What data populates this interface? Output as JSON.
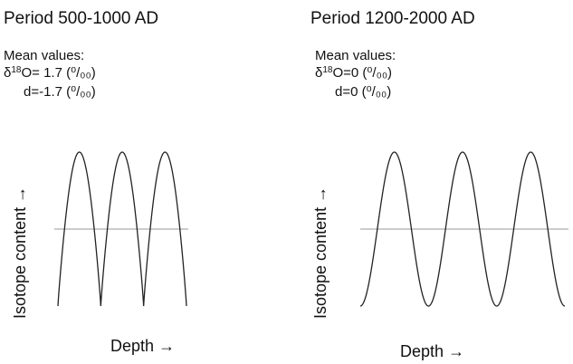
{
  "arrow_glyph": "→",
  "panels": [
    {
      "title": "Period 500-1000 AD",
      "mean_header": "Mean values:",
      "delta_prefix": "δ",
      "delta_sup": "18",
      "delta_rest": "O= 1.7 (⁰/₀₀)",
      "d_line": "d=-1.7 (⁰/₀₀)",
      "ylabel": "Isotope content",
      "xlabel": "Depth",
      "wave": {
        "cycles": 3,
        "shape": "flattened-peaks"
      }
    },
    {
      "title": "Period 1200-2000 AD",
      "mean_header": "Mean values:",
      "delta_prefix": "δ",
      "delta_sup": "18",
      "delta_rest": "O=0 (⁰/₀₀)",
      "d_line": "d=0 (⁰/₀₀)",
      "ylabel": "Isotope content",
      "xlabel": "Depth",
      "wave": {
        "cycles": 3,
        "shape": "sinusoid"
      }
    }
  ],
  "colors": {
    "curve": "#222222",
    "midline": "#999999",
    "text": "#111111"
  }
}
